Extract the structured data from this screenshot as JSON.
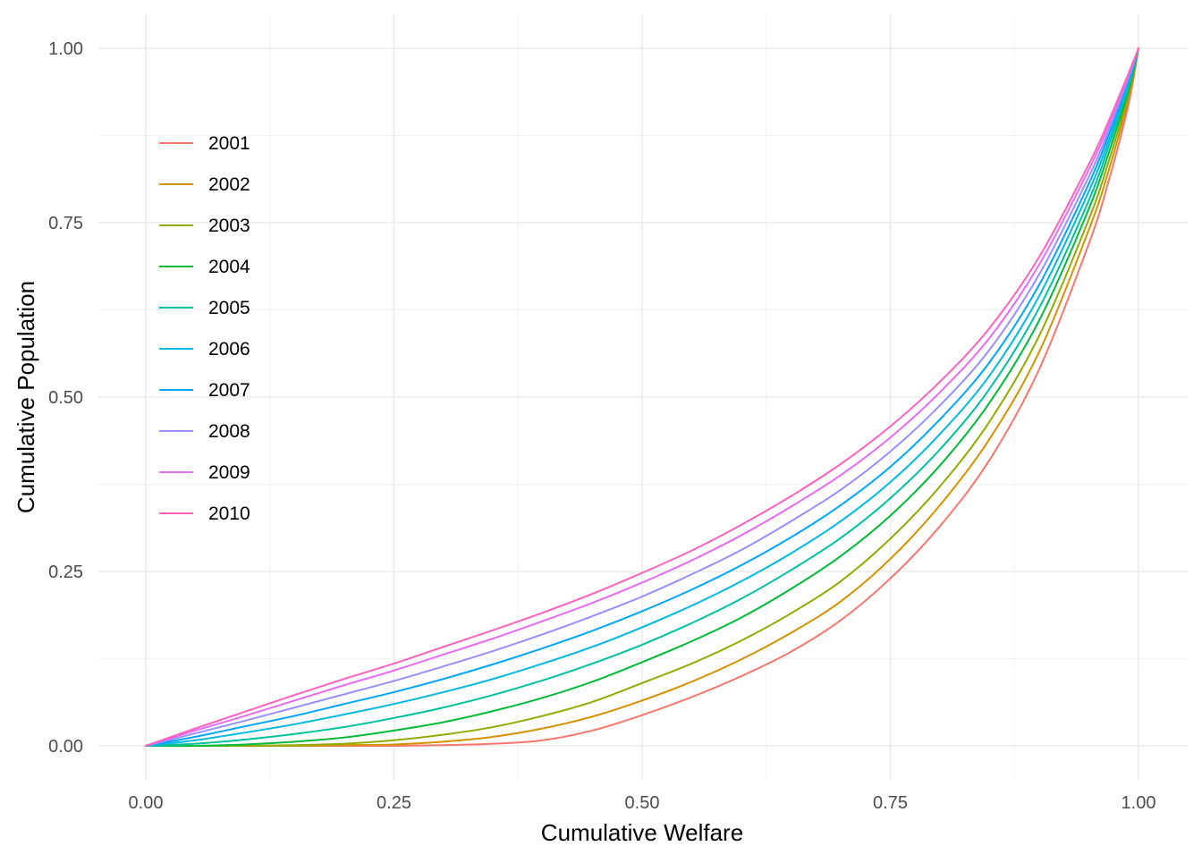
{
  "chart_data": {
    "type": "line",
    "title": "",
    "xlabel": "Cumulative Welfare",
    "ylabel": "Cumulative Population",
    "xlim": [
      0,
      1
    ],
    "ylim": [
      0,
      1
    ],
    "x_ticks": [
      "0.00",
      "0.25",
      "0.50",
      "0.75",
      "1.00"
    ],
    "y_ticks": [
      "0.00",
      "0.25",
      "0.50",
      "0.75",
      "1.00"
    ],
    "grid": true,
    "legend_position": "top-left inside",
    "x": [
      0.0,
      0.05,
      0.1,
      0.15,
      0.2,
      0.25,
      0.3,
      0.35,
      0.4,
      0.45,
      0.5,
      0.55,
      0.6,
      0.65,
      0.7,
      0.75,
      0.8,
      0.85,
      0.9,
      0.95,
      0.97,
      0.99,
      1.0
    ],
    "series": [
      {
        "name": "2001",
        "color": "#F8766D",
        "values": [
          0.0,
          0.0,
          0.0,
          0.0,
          0.0,
          0.0,
          0.001,
          0.003,
          0.008,
          0.022,
          0.044,
          0.07,
          0.1,
          0.135,
          0.18,
          0.24,
          0.315,
          0.41,
          0.54,
          0.72,
          0.81,
          0.92,
          1.0
        ]
      },
      {
        "name": "2002",
        "color": "#D39200",
        "values": [
          0.0,
          0.0,
          0.0,
          0.0,
          0.001,
          0.002,
          0.006,
          0.013,
          0.025,
          0.042,
          0.065,
          0.092,
          0.124,
          0.162,
          0.207,
          0.268,
          0.345,
          0.44,
          0.565,
          0.74,
          0.825,
          0.928,
          1.0
        ]
      },
      {
        "name": "2003",
        "color": "#93AA00",
        "values": [
          0.0,
          0.0,
          0.0,
          0.001,
          0.003,
          0.008,
          0.016,
          0.027,
          0.043,
          0.063,
          0.09,
          0.118,
          0.151,
          0.19,
          0.236,
          0.297,
          0.372,
          0.465,
          0.588,
          0.755,
          0.838,
          0.934,
          1.0
        ]
      },
      {
        "name": "2004",
        "color": "#00BA38",
        "values": [
          0.0,
          0.0,
          0.002,
          0.006,
          0.012,
          0.022,
          0.034,
          0.05,
          0.069,
          0.092,
          0.12,
          0.15,
          0.184,
          0.225,
          0.272,
          0.33,
          0.402,
          0.492,
          0.61,
          0.77,
          0.85,
          0.94,
          1.0
        ]
      },
      {
        "name": "2005",
        "color": "#00C19F",
        "values": [
          0.0,
          0.003,
          0.009,
          0.017,
          0.027,
          0.04,
          0.055,
          0.073,
          0.094,
          0.118,
          0.145,
          0.176,
          0.211,
          0.252,
          0.298,
          0.355,
          0.425,
          0.512,
          0.628,
          0.782,
          0.86,
          0.945,
          1.0
        ]
      },
      {
        "name": "2006",
        "color": "#00B9E3",
        "values": [
          0.0,
          0.008,
          0.019,
          0.031,
          0.045,
          0.06,
          0.077,
          0.096,
          0.118,
          0.142,
          0.17,
          0.201,
          0.236,
          0.276,
          0.322,
          0.378,
          0.447,
          0.531,
          0.645,
          0.795,
          0.868,
          0.95,
          1.0
        ]
      },
      {
        "name": "2007",
        "color": "#00A5FF",
        "values": [
          0.0,
          0.013,
          0.028,
          0.043,
          0.06,
          0.077,
          0.096,
          0.117,
          0.14,
          0.165,
          0.193,
          0.224,
          0.259,
          0.299,
          0.345,
          0.4,
          0.468,
          0.55,
          0.661,
          0.806,
          0.876,
          0.954,
          1.0
        ]
      },
      {
        "name": "2008",
        "color": "#9590FF",
        "values": [
          0.0,
          0.018,
          0.036,
          0.055,
          0.074,
          0.093,
          0.114,
          0.136,
          0.16,
          0.186,
          0.214,
          0.246,
          0.281,
          0.322,
          0.367,
          0.422,
          0.488,
          0.568,
          0.676,
          0.816,
          0.883,
          0.958,
          1.0
        ]
      },
      {
        "name": "2009",
        "color": "#E76BF3",
        "values": [
          0.0,
          0.022,
          0.043,
          0.065,
          0.087,
          0.108,
          0.131,
          0.154,
          0.179,
          0.205,
          0.234,
          0.266,
          0.302,
          0.343,
          0.388,
          0.442,
          0.507,
          0.585,
          0.69,
          0.826,
          0.89,
          0.961,
          1.0
        ]
      },
      {
        "name": "2010",
        "color": "#FF62BC",
        "values": [
          0.0,
          0.025,
          0.049,
          0.073,
          0.096,
          0.118,
          0.142,
          0.166,
          0.191,
          0.218,
          0.248,
          0.28,
          0.317,
          0.358,
          0.404,
          0.458,
          0.522,
          0.599,
          0.701,
          0.834,
          0.896,
          0.964,
          1.0
        ]
      }
    ]
  }
}
